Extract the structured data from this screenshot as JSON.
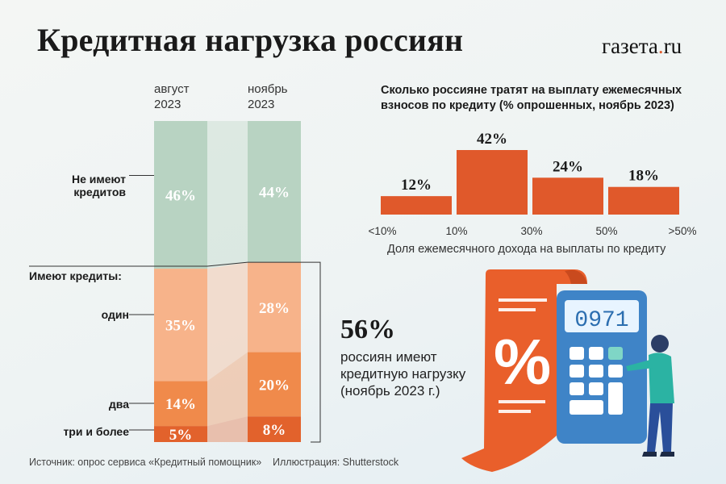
{
  "title": "Кредитная нагрузка россиян",
  "logo": "газета.ru",
  "stacked": {
    "columns": [
      {
        "line1": "август",
        "line2": "2023"
      },
      {
        "line1": "ноябрь",
        "line2": "2023"
      }
    ],
    "labels": {
      "no_credit_1": "Не имеют",
      "no_credit_2": "кредитов",
      "have_credit": "Имеют кредиты:",
      "one": "один",
      "two": "два",
      "three": "три и более"
    }
  },
  "bars": {
    "title": "Сколько россияне тратят на выплату ежемесячных взносов по кредиту (% опрошенных, ноябрь 2023)",
    "xlabel": "Доля ежемесячного дохода на выплаты по кредиту"
  },
  "highlight": {
    "value": "56%",
    "text": "россиян имеют кредитную нагрузку (ноябрь 2023 г.)"
  },
  "footer": {
    "source": "Источник: опрос сервиса «Кредитный помощник»",
    "illustration": "Иллюстрация: Shutterstock"
  },
  "illustration": {
    "screen_text": "0971"
  },
  "colors": {
    "no_credit": "#b8d3c2",
    "one": "#f7b38a",
    "two": "#f08a4b",
    "three": "#e2622c",
    "bar": "#e0592b"
  },
  "chart_data": [
    {
      "type": "bar",
      "stacked": true,
      "categories": [
        "август 2023",
        "ноябрь 2023"
      ],
      "series": [
        {
          "name": "три и более",
          "values": [
            5,
            8
          ]
        },
        {
          "name": "два",
          "values": [
            14,
            20
          ]
        },
        {
          "name": "один",
          "values": [
            35,
            28
          ]
        },
        {
          "name": "Не имеют кредитов",
          "values": [
            46,
            44
          ]
        }
      ],
      "labels": [
        [
          "5%",
          "8%"
        ],
        [
          "14%",
          "20%"
        ],
        [
          "35%",
          "28%"
        ],
        [
          "46%",
          "44%"
        ]
      ],
      "ylim": [
        0,
        100
      ]
    },
    {
      "type": "bar",
      "title": "Сколько россияне тратят на выплату ежемесячных взносов по кредиту (% опрошенных, ноябрь 2023)",
      "xlabel": "Доля ежемесячного дохода на выплаты по кредиту",
      "tick_labels": [
        "<10%",
        "10%",
        "30%",
        "50%",
        ">50%"
      ],
      "values": [
        12,
        42,
        24,
        18
      ],
      "value_labels": [
        "12%",
        "42%",
        "24%",
        "18%"
      ],
      "ylim": [
        0,
        42
      ]
    }
  ]
}
